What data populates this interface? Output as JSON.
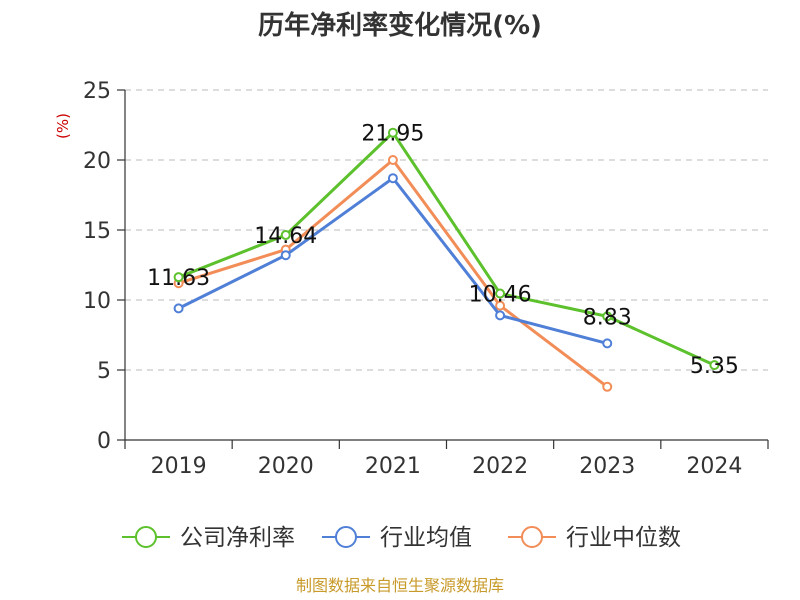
{
  "chart_data": {
    "type": "line",
    "title": "历年净利率变化情况(%)",
    "ylabel": "(%)",
    "xlabel": "",
    "categories": [
      "2019",
      "2020",
      "2021",
      "2022",
      "2023",
      "2024"
    ],
    "ylim": [
      0,
      25
    ],
    "yticks": [
      0,
      5,
      10,
      15,
      20,
      25
    ],
    "grid": true,
    "legend_position": "bottom",
    "series": [
      {
        "name": "公司净利率",
        "color": "#5cc12c",
        "values": [
          11.63,
          14.64,
          21.95,
          10.46,
          8.83,
          5.35
        ],
        "labels": [
          "11.63",
          "14.64",
          "21.95",
          "10.46",
          "8.83",
          "5.35"
        ]
      },
      {
        "name": "行业均值",
        "color": "#4f7fd6",
        "values": [
          9.4,
          13.2,
          18.7,
          8.9,
          6.9,
          null
        ]
      },
      {
        "name": "行业中位数",
        "color": "#f28d58",
        "values": [
          11.2,
          13.6,
          20.0,
          9.6,
          3.8,
          null
        ]
      }
    ]
  },
  "footer": {
    "source": "制图数据来自恒生聚源数据库"
  }
}
